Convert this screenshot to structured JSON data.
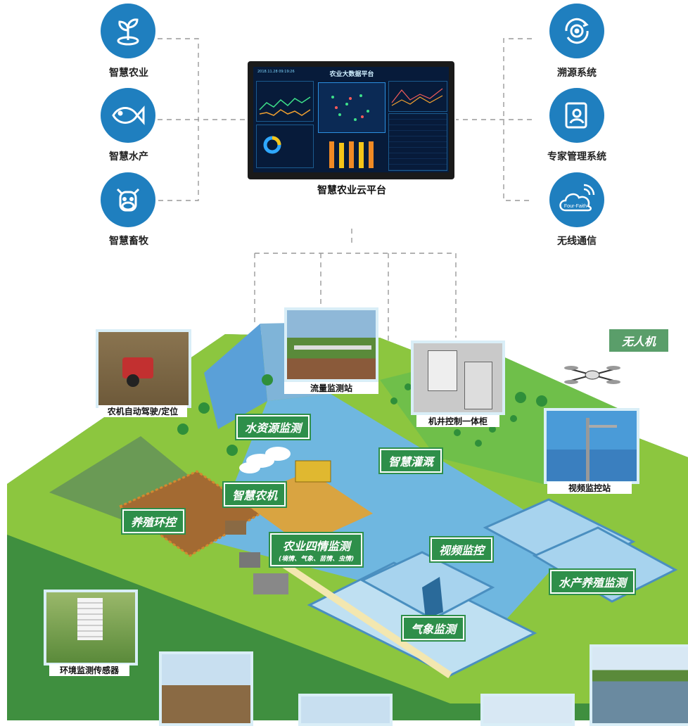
{
  "left_items": [
    {
      "label": "智慧农业",
      "icon": "sprout-icon"
    },
    {
      "label": "智慧水产",
      "icon": "fish-icon"
    },
    {
      "label": "智慧畜牧",
      "icon": "cow-icon"
    }
  ],
  "right_items": [
    {
      "label": "溯源系统",
      "icon": "target-icon"
    },
    {
      "label": "专家管理系统",
      "icon": "expert-icon"
    },
    {
      "label": "无线通信",
      "icon": "cloud-signal-icon",
      "icon_text": "Four-Faith"
    }
  ],
  "center": {
    "title": "智慧农业云平台",
    "screen_title": "农业大数据平台",
    "screen_date": "2018.11.28  09:19:26"
  },
  "drone_label": "无人机",
  "map_labels": {
    "water": "水资源监测",
    "irrigation": "智慧灌溉",
    "machinery": "智慧农机",
    "breeding": "养殖环控",
    "four_cond": "农业四情监测",
    "four_cond_sub": "(墒情、气象、苗情、虫情)",
    "video": "视频监控",
    "aquaculture": "水产养殖监测",
    "weather": "气象监测"
  },
  "photo_captions": {
    "tractor": "农机自动驾驶/定位",
    "flow": "流量监测站",
    "well": "机井控制一体柜",
    "video_station": "视频监控站",
    "env_sensor": "环境监测传感器"
  },
  "colors": {
    "icon_blue": "#1f7fbf",
    "label_green": "#2e8f4a",
    "field_green": "#8cc63f",
    "water": "#6fb7e0"
  }
}
